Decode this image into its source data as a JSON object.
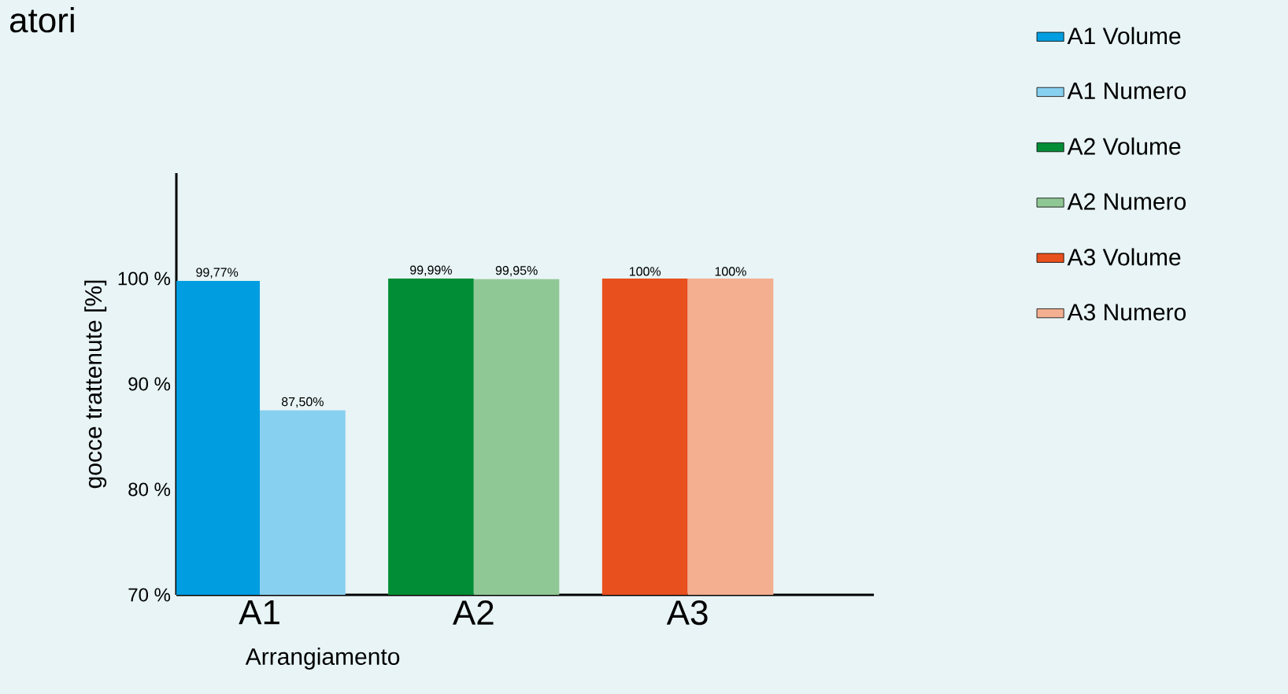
{
  "chart_data": {
    "type": "bar",
    "title": "atori",
    "xlabel": "Arrangiamento",
    "ylabel": "gocce trattenute [%]",
    "categories": [
      "A1",
      "A2",
      "A3"
    ],
    "series": [
      {
        "name": "A1 Volume",
        "color": "#009ee0",
        "values": [
          99.77,
          null,
          null
        ],
        "value_labels": [
          "99,77%",
          null,
          null
        ]
      },
      {
        "name": "A1 Numero",
        "color": "#88d0f0",
        "values": [
          87.5,
          null,
          null
        ],
        "value_labels": [
          "87,50%",
          null,
          null
        ]
      },
      {
        "name": "A2 Volume",
        "color": "#008d36",
        "values": [
          null,
          99.99,
          null
        ],
        "value_labels": [
          null,
          "99,99%",
          null
        ]
      },
      {
        "name": "A2 Numero",
        "color": "#90c895",
        "values": [
          null,
          99.95,
          null
        ],
        "value_labels": [
          null,
          "99,95%",
          null
        ]
      },
      {
        "name": "A3 Volume",
        "color": "#e8501e",
        "values": [
          null,
          null,
          100
        ],
        "value_labels": [
          null,
          null,
          "100%"
        ]
      },
      {
        "name": "A3 Numero",
        "color": "#f4ae90",
        "values": [
          null,
          null,
          100
        ],
        "value_labels": [
          null,
          null,
          "100%"
        ]
      }
    ],
    "ylim": [
      70,
      110
    ],
    "yticks": [
      {
        "value": 70,
        "label": "70 %"
      },
      {
        "value": 80,
        "label": "80 %"
      },
      {
        "value": 90,
        "label": "90 %"
      },
      {
        "value": 100,
        "label": "100 %"
      }
    ],
    "legend": "right"
  }
}
